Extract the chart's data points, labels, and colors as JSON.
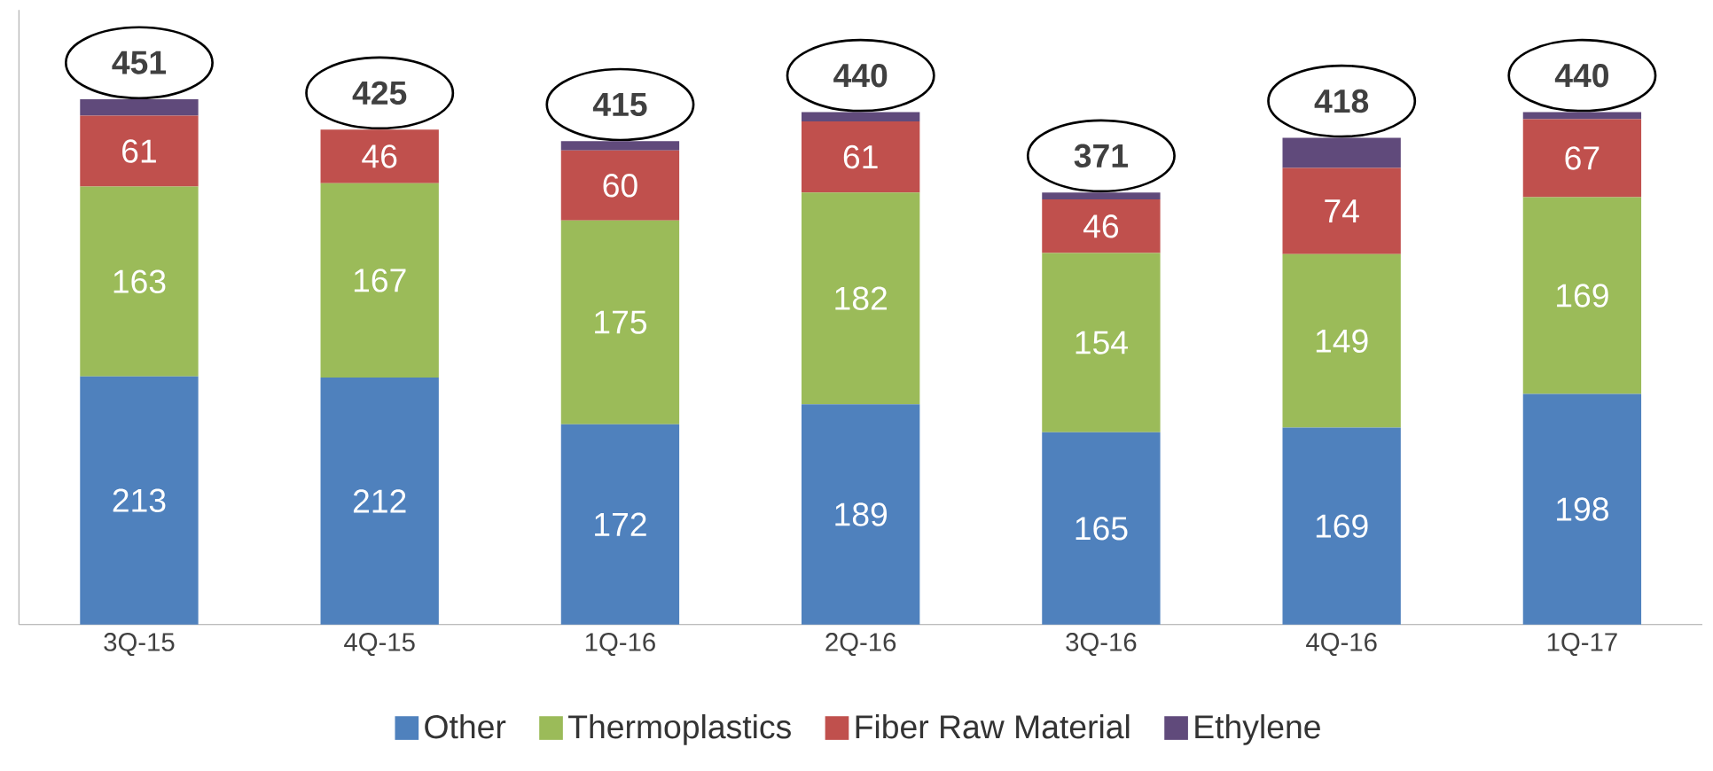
{
  "chart_data": {
    "type": "bar",
    "stacked": true,
    "legend": "bottom",
    "categories": [
      "3Q-15",
      "4Q-15",
      "1Q-16",
      "2Q-16",
      "3Q-16",
      "4Q-16",
      "1Q-17"
    ],
    "series": [
      {
        "name": "Other",
        "color": "#4f81bd",
        "values": [
          213,
          212,
          172,
          189,
          165,
          169,
          198
        ],
        "value_labels": [
          "213",
          "212",
          "172",
          "189",
          "165",
          "169",
          "198"
        ]
      },
      {
        "name": "Thermoplastics",
        "color": "#9bbb59",
        "values": [
          163,
          167,
          175,
          182,
          154,
          149,
          169
        ],
        "value_labels": [
          "163",
          "167",
          "175",
          "182",
          "154",
          "149",
          "169"
        ]
      },
      {
        "name": "Fiber Raw Material",
        "color": "#c0504d",
        "values": [
          61,
          46,
          60,
          61,
          46,
          74,
          67
        ],
        "value_labels": [
          "61",
          "46",
          "60",
          "61",
          "46",
          "74",
          "67"
        ]
      },
      {
        "name": "Ethylene",
        "color": "#604a7b",
        "values": [
          14,
          0,
          8,
          8,
          6,
          26,
          6
        ],
        "value_labels": [
          null,
          null,
          null,
          null,
          null,
          null,
          null
        ]
      }
    ],
    "totals": [
      "451",
      "425",
      "415",
      "440",
      "371",
      "418",
      "440"
    ]
  }
}
